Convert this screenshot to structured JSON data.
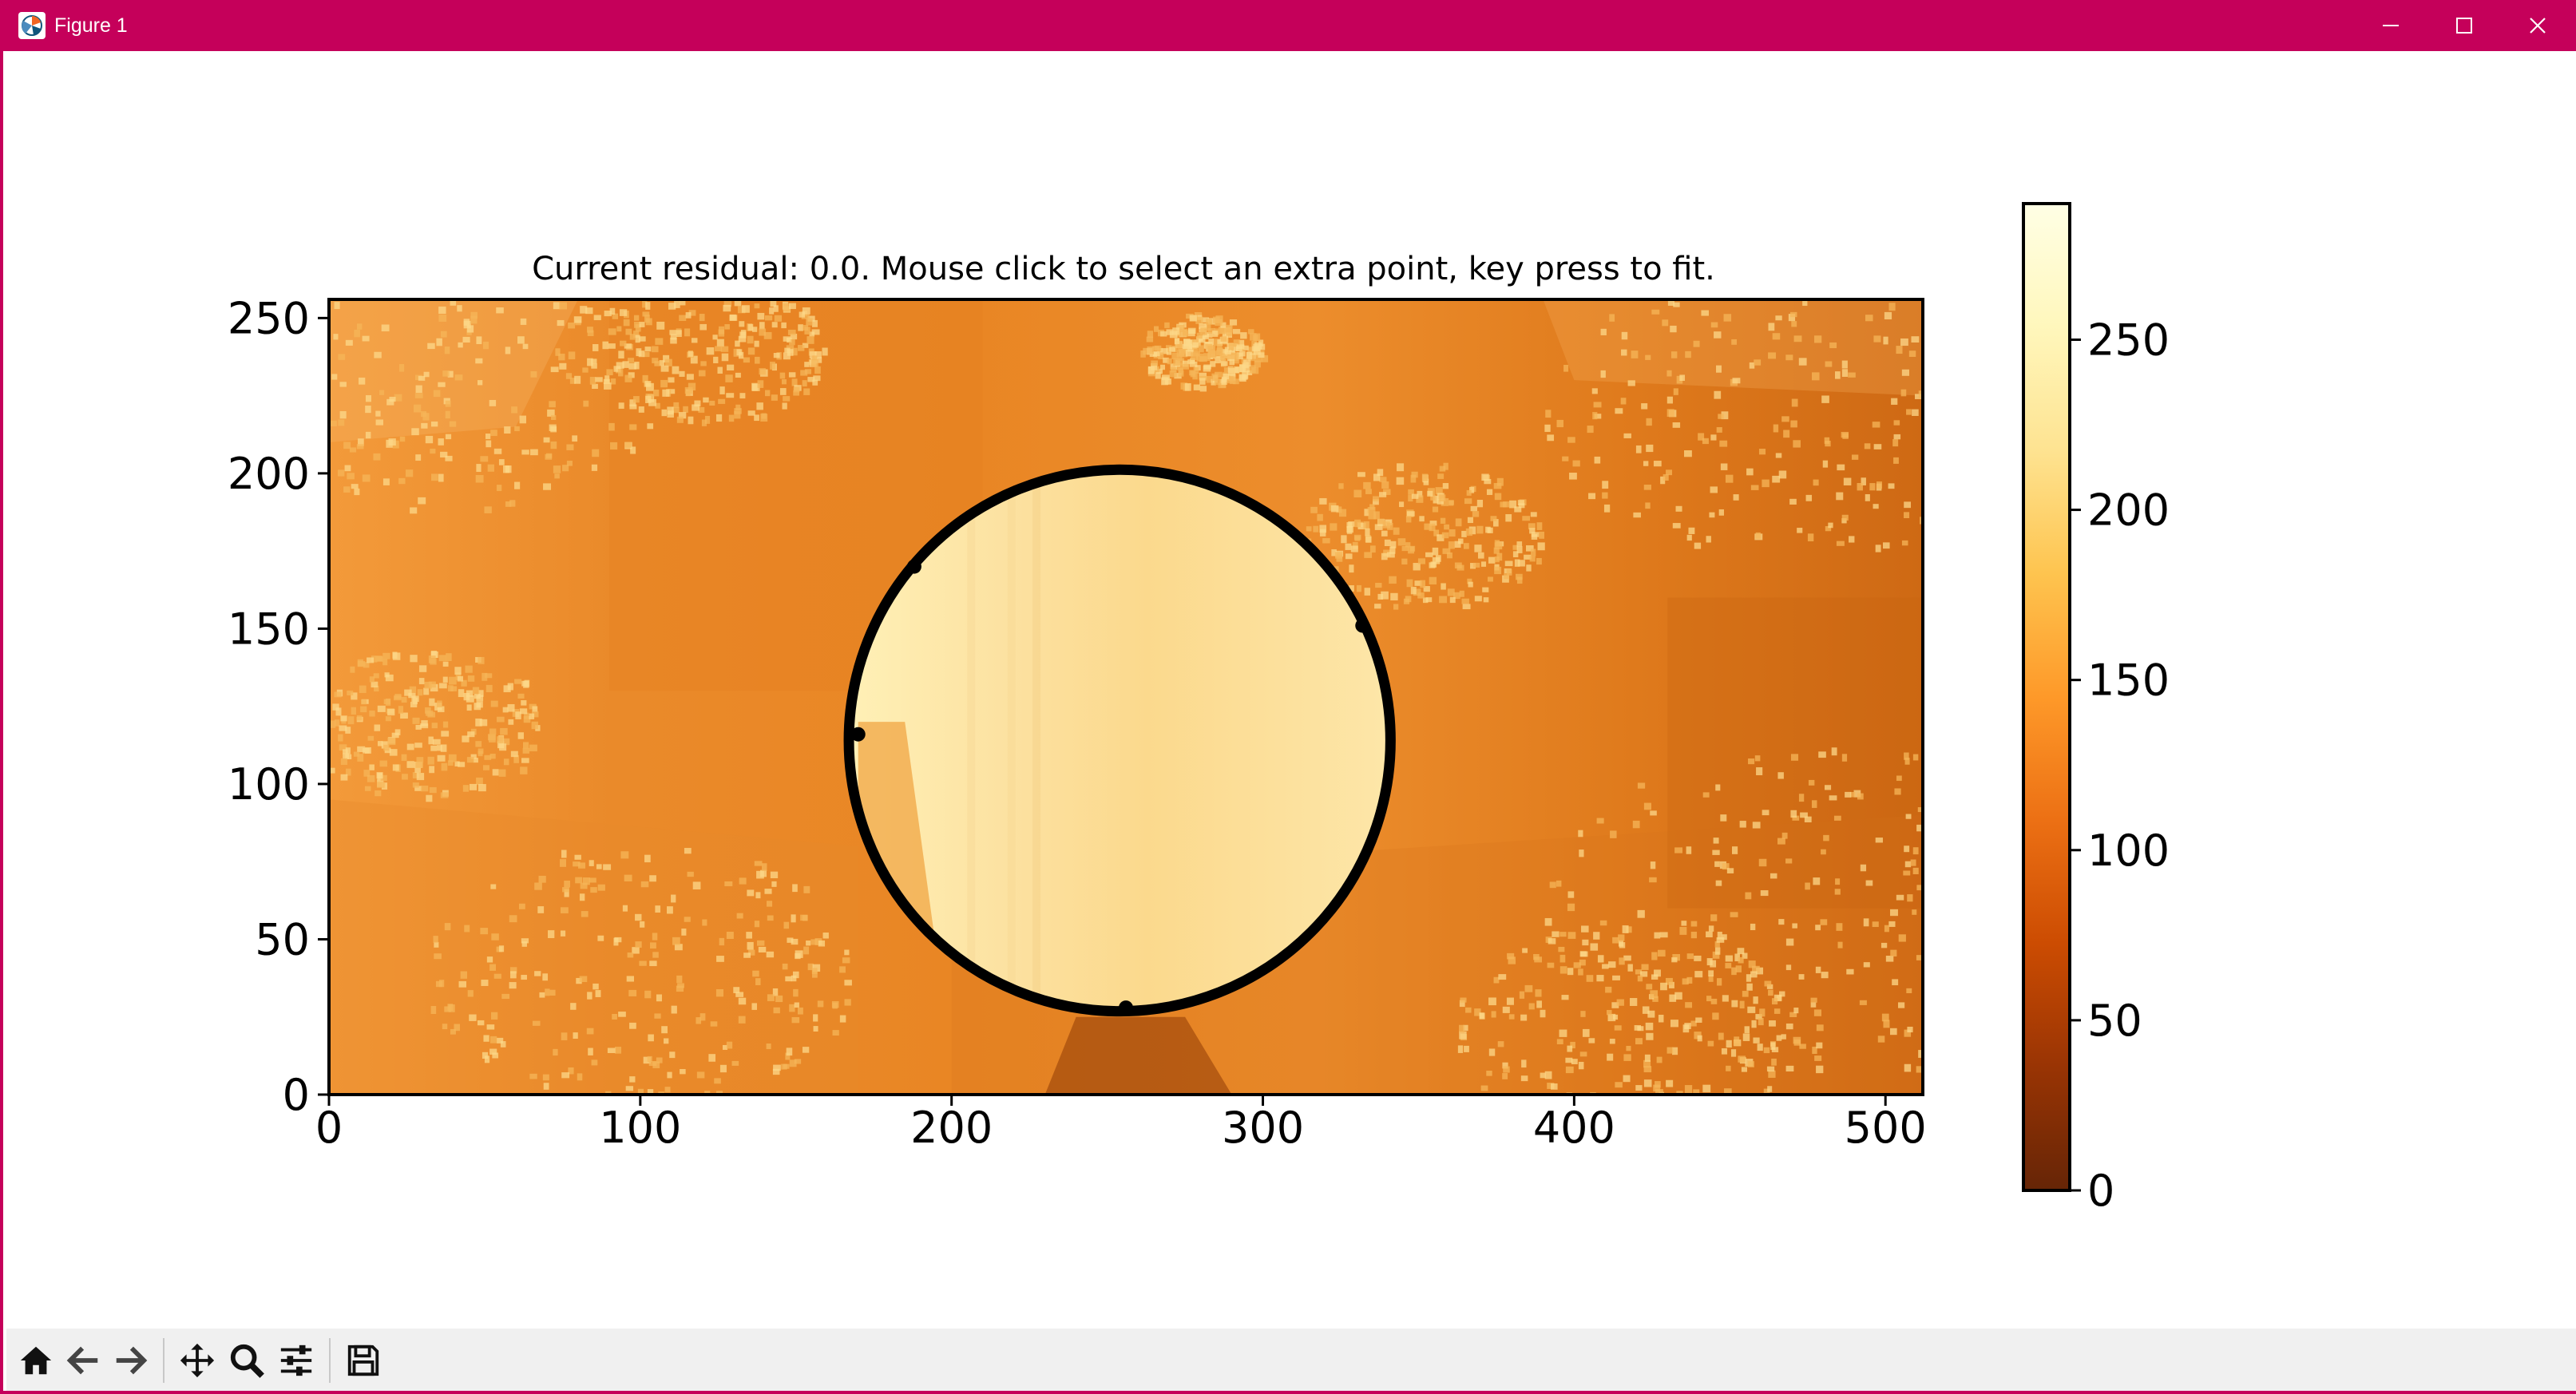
{
  "window": {
    "title": "Figure 1",
    "icons": {
      "app": "matplotlib-icon",
      "minimize": "minimize-icon",
      "maximize": "maximize-icon",
      "close": "close-icon"
    },
    "colors": {
      "titlebar": "#c5005a",
      "title_text": "#ffffff"
    }
  },
  "toolbar": {
    "buttons": [
      {
        "name": "home",
        "icon": "home-icon"
      },
      {
        "name": "back",
        "icon": "arrow-left-icon"
      },
      {
        "name": "forward",
        "icon": "arrow-right-icon"
      },
      {
        "name": "pan",
        "icon": "move-icon"
      },
      {
        "name": "zoom",
        "icon": "magnifier-icon"
      },
      {
        "name": "configure-subplots",
        "icon": "sliders-icon"
      },
      {
        "name": "save",
        "icon": "floppy-disk-icon"
      }
    ]
  },
  "chart_data": {
    "type": "heatmap",
    "title": "Current residual: 0.0. Mouse click to select an extra point, key press to fit.",
    "xlabel": "",
    "ylabel": "",
    "xlim": [
      0,
      512
    ],
    "ylim": [
      0,
      256
    ],
    "x_ticks": [
      0,
      100,
      200,
      300,
      400,
      500
    ],
    "y_ticks": [
      0,
      50,
      100,
      150,
      200,
      250
    ],
    "x_tick_labels": [
      "0",
      "100",
      "200",
      "300",
      "400",
      "500"
    ],
    "y_tick_labels": [
      "0",
      "50",
      "100",
      "150",
      "200",
      "250"
    ],
    "colormap": "YlOrBr_r",
    "colorbar": {
      "range": [
        0,
        290
      ],
      "ticks": [
        0,
        50,
        100,
        150,
        200,
        250
      ],
      "tick_labels": [
        "0",
        "50",
        "100",
        "150",
        "200",
        "250"
      ],
      "color_stops": [
        "#662506",
        "#993404",
        "#cc4c02",
        "#ec7014",
        "#fe9929",
        "#fec44f",
        "#fee391",
        "#fff7bc",
        "#ffffe5"
      ]
    },
    "fitted_circle": {
      "center": [
        254,
        114
      ],
      "radius": 87,
      "color": "#000000"
    },
    "selected_points": [
      [
        188,
        170
      ],
      [
        332,
        151
      ],
      [
        256,
        28
      ],
      [
        170,
        116
      ]
    ]
  }
}
